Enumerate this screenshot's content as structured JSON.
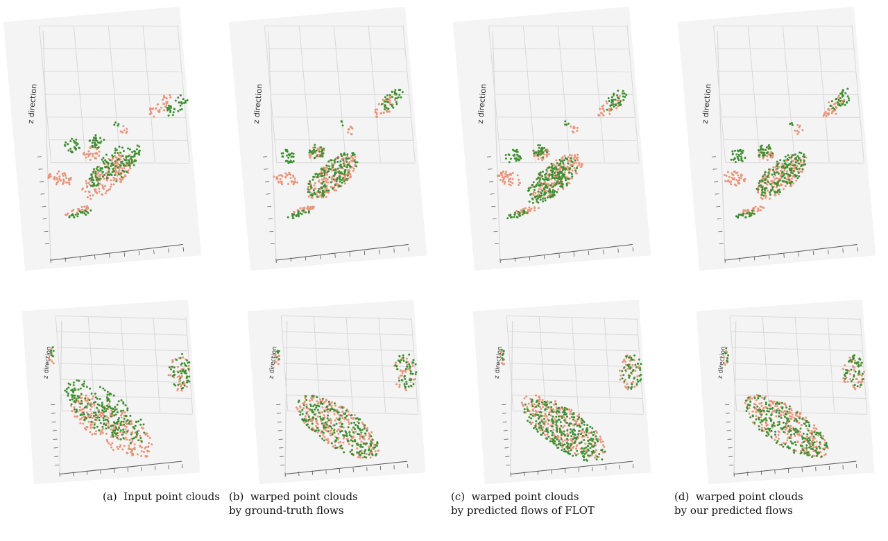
{
  "figure": {
    "axis_label": "z direction",
    "colors": {
      "source": "#e8957a",
      "target": "#3f8f32",
      "grid": "#d8d8d8",
      "pane": "#f4f4f4",
      "axis": "#555555"
    }
  },
  "panels": [
    {
      "id": "a",
      "label": "(a)",
      "caption_line1": "Input point clouds",
      "caption_line2": ""
    },
    {
      "id": "b",
      "label": "(b)",
      "caption_line1": "warped point clouds",
      "caption_line2": "by ground-truth flows"
    },
    {
      "id": "c",
      "label": "(c)",
      "caption_line1": "warped point clouds",
      "caption_line2": "by predicted flows of FLOT"
    },
    {
      "id": "d",
      "label": "(d)",
      "caption_line1": "warped point clouds",
      "caption_line2": "by our predicted flows"
    }
  ]
}
